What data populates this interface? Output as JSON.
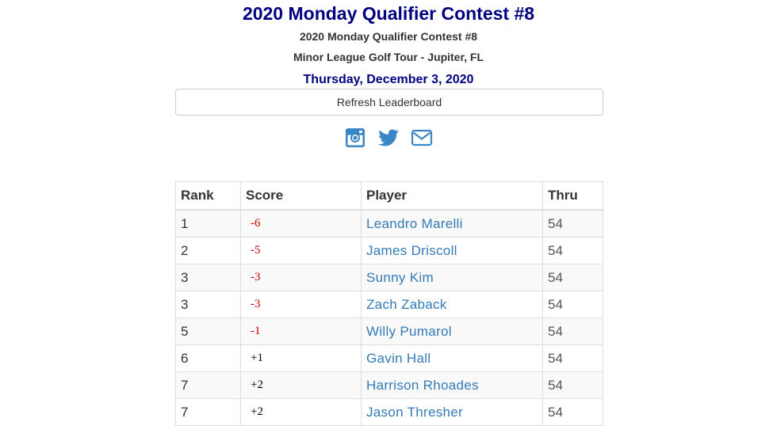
{
  "header": {
    "title": "2020 Monday Qualifier Contest #8",
    "subtitle": "2020 Monday Qualifier Contest #8",
    "tour": "Minor League Golf Tour - Jupiter, FL",
    "date": "Thursday, December 3, 2020"
  },
  "refresh_label": "Refresh Leaderboard",
  "social": [
    "instagram-icon",
    "twitter-icon",
    "email-icon"
  ],
  "colors": {
    "title": "#000080",
    "link": "#337ab7",
    "under_par": "#cc0000"
  },
  "table": {
    "columns": [
      "Rank",
      "Score",
      "Player",
      "Thru"
    ],
    "rows": [
      {
        "rank": "1",
        "score": "-6",
        "player": "Leandro Marelli",
        "thru": "54"
      },
      {
        "rank": "2",
        "score": "-5",
        "player": "James Driscoll",
        "thru": "54"
      },
      {
        "rank": "3",
        "score": "-3",
        "player": "Sunny Kim",
        "thru": "54"
      },
      {
        "rank": "3",
        "score": "-3",
        "player": "Zach Zaback",
        "thru": "54"
      },
      {
        "rank": "5",
        "score": "-1",
        "player": "Willy Pumarol",
        "thru": "54"
      },
      {
        "rank": "6",
        "score": "+1",
        "player": "Gavin Hall",
        "thru": "54"
      },
      {
        "rank": "7",
        "score": "+2",
        "player": "Harrison Rhoades",
        "thru": "54"
      },
      {
        "rank": "7",
        "score": "+2",
        "player": "Jason Thresher",
        "thru": "54"
      }
    ]
  }
}
